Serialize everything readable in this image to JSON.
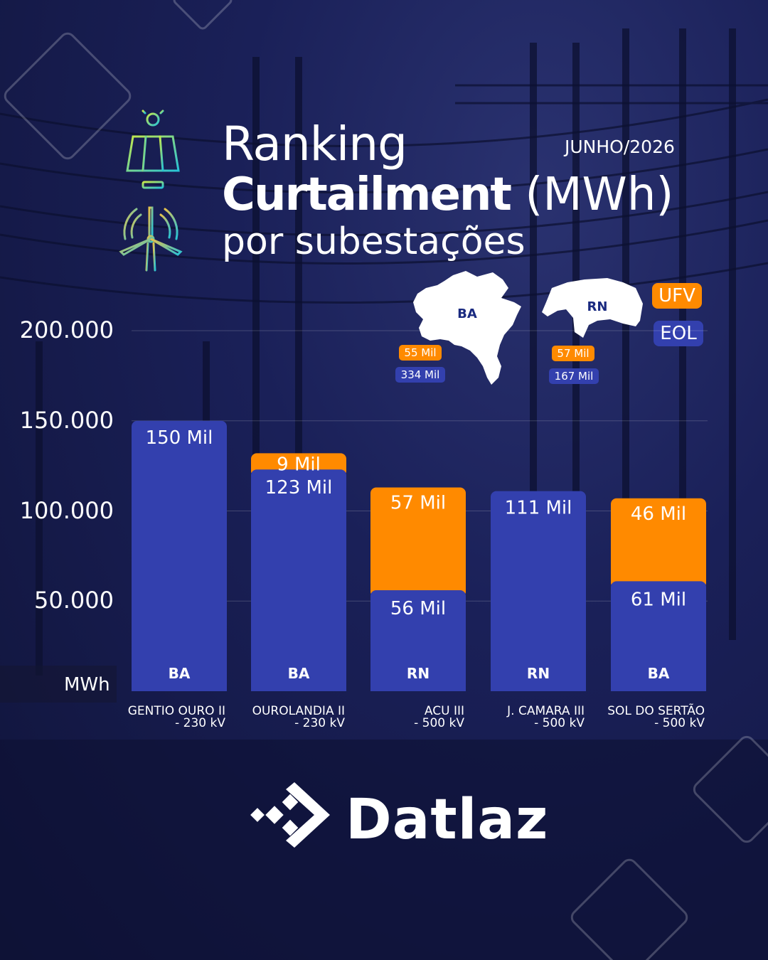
{
  "header": {
    "title_line1": "Ranking",
    "title_bold": "Curtailment",
    "title_unit": "(MWh)",
    "title_line3": "por subestações",
    "date": "JUNHO/2026"
  },
  "legend": {
    "ufv": "UFV",
    "eol": "EOL"
  },
  "states": [
    {
      "name": "BA",
      "ufv": "55 Mil",
      "eol": "334 Mil"
    },
    {
      "name": "RN",
      "ufv": "57 Mil",
      "eol": "167 Mil"
    }
  ],
  "colors": {
    "ufv": "#ff8a00",
    "eol": "#3340ae",
    "background": "#1a2058"
  },
  "icons": [
    "solar-panel-icon",
    "wind-turbine-icon",
    "datlaz-logo-icon"
  ],
  "chart_data": {
    "type": "bar",
    "stacked": true,
    "categories": [
      "GENTIO OURO II\n- 230 kV",
      "OUROLANDIA II\n- 230 kV",
      "ACU III\n- 500 kV",
      "J. CAMARA III\n- 500 kV",
      "SOL DO SERTÃO\n- 500 kV"
    ],
    "states": [
      "BA",
      "BA",
      "RN",
      "RN",
      "BA"
    ],
    "series": [
      {
        "name": "EOL",
        "values": [
          150000,
          123000,
          56000,
          111000,
          61000
        ],
        "labels": [
          "150 Mil",
          "123 Mil",
          "56 Mil",
          "111 Mil",
          "61 Mil"
        ]
      },
      {
        "name": "UFV",
        "values": [
          0,
          9000,
          57000,
          0,
          46000
        ],
        "labels": [
          "",
          "9 Mil",
          "57 Mil",
          "",
          "46 Mil"
        ]
      }
    ],
    "ylabel": "MWh",
    "yticks": [
      "50.000",
      "100.000",
      "150.000",
      "200.000"
    ],
    "ytick_values": [
      50000,
      100000,
      150000,
      200000
    ],
    "ylim": [
      0,
      200000
    ],
    "legend": "top-right"
  },
  "brand": {
    "name": "Datlaz"
  }
}
